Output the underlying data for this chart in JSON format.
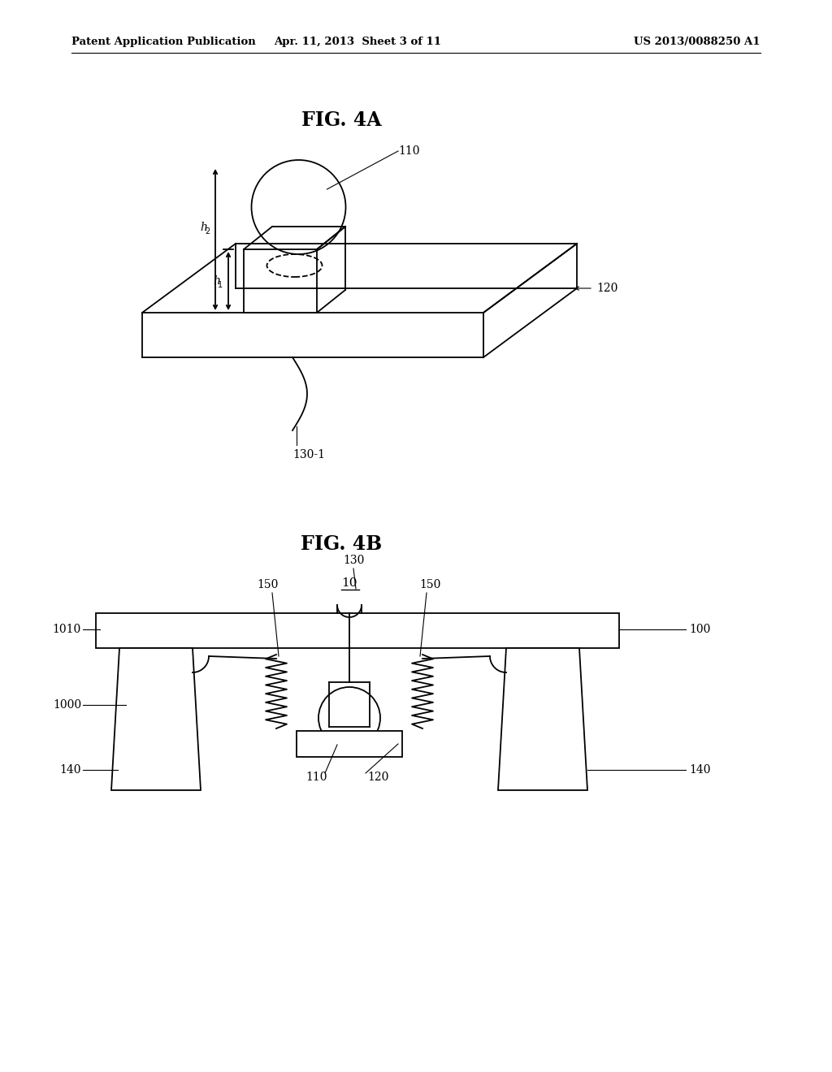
{
  "bg_color": "#ffffff",
  "line_color": "#000000",
  "header_left": "Patent Application Publication",
  "header_center": "Apr. 11, 2013  Sheet 3 of 11",
  "header_right": "US 2013/0088250 A1",
  "fig4a_title": "FIG. 4A",
  "fig4b_title": "FIG. 4B",
  "label_10": "10",
  "label_110_4a": "110",
  "label_120_4a": "120",
  "label_130_1": "130-1",
  "label_h1": "h1",
  "label_h2": "h2",
  "label_110_4b": "110",
  "label_120_4b": "120",
  "label_130_4b": "130",
  "label_140_l": "140",
  "label_140_r": "140",
  "label_150_l": "150",
  "label_150_r": "150",
  "label_1000": "1000",
  "label_1010": "1010",
  "label_100": "100"
}
